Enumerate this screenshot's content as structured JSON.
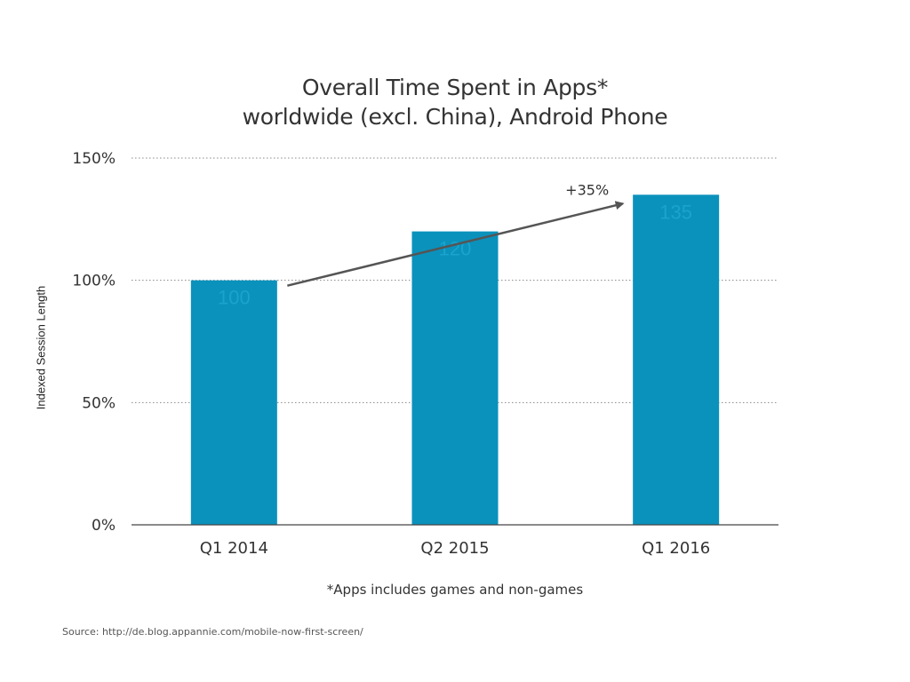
{
  "chart_data": {
    "type": "bar",
    "title": "Overall Time Spent in Apps*",
    "subtitle": "worldwide (excl. China), Android Phone",
    "xlabel": "",
    "ylabel": "Indexed Session Length",
    "categories": [
      "Q1 2014",
      "Q2 2015",
      "Q1 2016"
    ],
    "values": [
      100,
      120,
      135
    ],
    "data_labels": [
      "100",
      "120",
      "135"
    ],
    "ylim": [
      0,
      150
    ],
    "y_ticks": [
      {
        "value": 0,
        "label": "0%"
      },
      {
        "value": 50,
        "label": "50%"
      },
      {
        "value": 100,
        "label": "100%"
      },
      {
        "value": 150,
        "label": "150%"
      }
    ],
    "grid": true,
    "grid_style": "dotted",
    "bar_color": "#0a92bc",
    "annotation": {
      "text": "+35%",
      "from_category": "Q1 2014",
      "to_category": "Q1 2016"
    },
    "footnote": "*Apps includes games and non-games",
    "source": "Source: http://de.blog.appannie.com/mobile-now-first-screen/"
  }
}
